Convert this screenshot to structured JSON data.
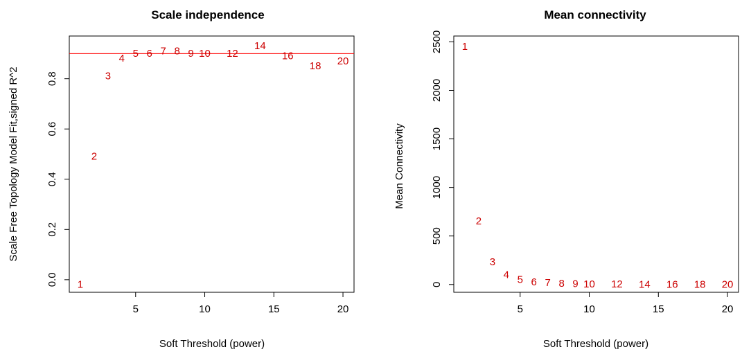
{
  "chart_data": [
    {
      "type": "scatter",
      "title": "Scale independence",
      "xlabel": "Soft Threshold (power)",
      "ylabel": "Scale Free Topology Model Fit,signed R^2",
      "xlim": [
        0.2,
        20.8
      ],
      "ylim": [
        -0.05,
        0.97
      ],
      "xticks": [
        5,
        10,
        15,
        20
      ],
      "yticks": [
        0.0,
        0.2,
        0.4,
        0.6,
        0.8
      ],
      "ytick_labels": [
        "0.0",
        "0.2",
        "0.4",
        "0.6",
        "0.8"
      ],
      "point_color": "#cc0000",
      "hline": {
        "y": 0.9,
        "color": "#ff0000"
      },
      "points": [
        {
          "x": 1,
          "y": -0.02,
          "label": "1"
        },
        {
          "x": 2,
          "y": 0.49,
          "label": "2"
        },
        {
          "x": 3,
          "y": 0.81,
          "label": "3"
        },
        {
          "x": 4,
          "y": 0.88,
          "label": "4"
        },
        {
          "x": 5,
          "y": 0.9,
          "label": "5"
        },
        {
          "x": 6,
          "y": 0.9,
          "label": "6"
        },
        {
          "x": 7,
          "y": 0.91,
          "label": "7"
        },
        {
          "x": 8,
          "y": 0.91,
          "label": "8"
        },
        {
          "x": 9,
          "y": 0.9,
          "label": "9"
        },
        {
          "x": 10,
          "y": 0.9,
          "label": "10"
        },
        {
          "x": 12,
          "y": 0.9,
          "label": "12"
        },
        {
          "x": 14,
          "y": 0.93,
          "label": "14"
        },
        {
          "x": 16,
          "y": 0.89,
          "label": "16"
        },
        {
          "x": 18,
          "y": 0.85,
          "label": "18"
        },
        {
          "x": 20,
          "y": 0.87,
          "label": "20"
        }
      ]
    },
    {
      "type": "scatter",
      "title": "Mean connectivity",
      "xlabel": "Soft Threshold (power)",
      "ylabel": "Mean Connectivity",
      "xlim": [
        0.2,
        20.8
      ],
      "ylim": [
        -80,
        2560
      ],
      "xticks": [
        5,
        10,
        15,
        20
      ],
      "yticks": [
        0,
        500,
        1000,
        1500,
        2000,
        2500
      ],
      "ytick_labels": [
        "0",
        "500",
        "1000",
        "1500",
        "2000",
        "2500"
      ],
      "point_color": "#cc0000",
      "points": [
        {
          "x": 1,
          "y": 2450,
          "label": "1"
        },
        {
          "x": 2,
          "y": 650,
          "label": "2"
        },
        {
          "x": 3,
          "y": 230,
          "label": "3"
        },
        {
          "x": 4,
          "y": 100,
          "label": "4"
        },
        {
          "x": 5,
          "y": 50,
          "label": "5"
        },
        {
          "x": 6,
          "y": 25,
          "label": "6"
        },
        {
          "x": 7,
          "y": 15,
          "label": "7"
        },
        {
          "x": 8,
          "y": 9,
          "label": "8"
        },
        {
          "x": 9,
          "y": 5,
          "label": "9"
        },
        {
          "x": 10,
          "y": 3,
          "label": "10"
        },
        {
          "x": 12,
          "y": 1,
          "label": "12"
        },
        {
          "x": 14,
          "y": 0,
          "label": "14"
        },
        {
          "x": 16,
          "y": 0,
          "label": "16"
        },
        {
          "x": 18,
          "y": 0,
          "label": "18"
        },
        {
          "x": 20,
          "y": 0,
          "label": "20"
        }
      ]
    }
  ]
}
